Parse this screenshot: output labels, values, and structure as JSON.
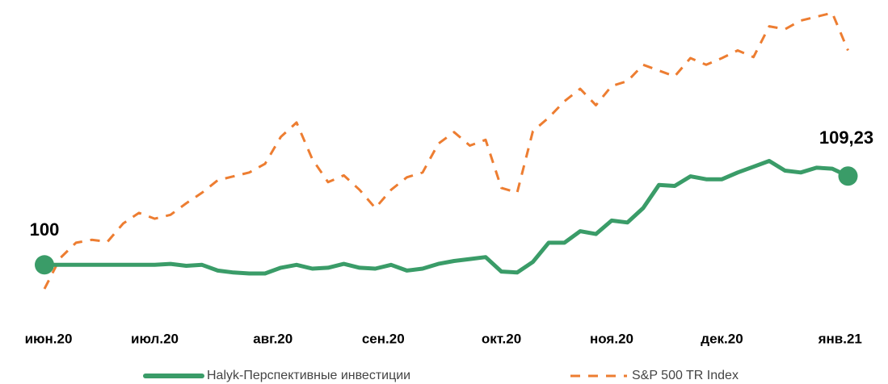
{
  "chart_data": {
    "type": "line",
    "xlim": [
      0,
      51
    ],
    "xticks": [
      {
        "value": 0,
        "label": "июн.20"
      },
      {
        "value": 7,
        "label": "июл.20"
      },
      {
        "value": 14.5,
        "label": "авг.20"
      },
      {
        "value": 21.5,
        "label": "сен.20"
      },
      {
        "value": 29,
        "label": "окт.20"
      },
      {
        "value": 36,
        "label": "ноя.20"
      },
      {
        "value": 43,
        "label": "дек.20"
      },
      {
        "value": 50.5,
        "label": "янв.21"
      }
    ],
    "ylim": [
      96.5,
      126.7
    ],
    "grid": false,
    "series": [
      {
        "name": "Halyk-Перспективные инвестиции",
        "color": "#3a9c68",
        "values": [
          100,
          100,
          100,
          100,
          100,
          100,
          100,
          100,
          100.1,
          99.9,
          100,
          99.4,
          99.2,
          99.1,
          99.1,
          99.7,
          100,
          99.6,
          99.7,
          100.1,
          99.7,
          99.6,
          100,
          99.4,
          99.6,
          100.1,
          100.4,
          100.6,
          100.8,
          99.3,
          99.2,
          100.3,
          102.3,
          102.3,
          103.5,
          103.2,
          104.6,
          104.4,
          105.9,
          108.3,
          108.2,
          109.2,
          108.9,
          108.9,
          109.6,
          110.2,
          110.8,
          109.8,
          109.6,
          110.1,
          110,
          109.23
        ],
        "value_labels": [
          "100",
          null,
          null,
          null,
          null,
          null,
          null,
          null,
          null,
          null,
          null,
          null,
          null,
          null,
          null,
          null,
          null,
          null,
          null,
          null,
          null,
          null,
          null,
          null,
          null,
          null,
          null,
          null,
          null,
          null,
          null,
          null,
          null,
          null,
          null,
          null,
          null,
          null,
          null,
          null,
          null,
          null,
          null,
          null,
          null,
          null,
          null,
          null,
          null,
          null,
          null,
          "109,23"
        ]
      },
      {
        "name": "S&P 500 TR Index",
        "color": "#ed7d31",
        "values": [
          97.5,
          100.7,
          102.3,
          102.6,
          102.4,
          104.3,
          105.4,
          104.8,
          105.2,
          106.4,
          107.5,
          108.8,
          109.2,
          109.6,
          110.5,
          113.3,
          114.8,
          111,
          108.6,
          109.3,
          107.8,
          105.9,
          107.8,
          109.1,
          109.6,
          112.6,
          113.8,
          112.4,
          113,
          108,
          107.5,
          113.9,
          115.3,
          117,
          118.3,
          116.6,
          118.6,
          119.1,
          120.8,
          120.2,
          119.6,
          121.5,
          120.8,
          121.5,
          122.3,
          121.6,
          124.8,
          124.5,
          125.4,
          125.8,
          126.2,
          122.3
        ]
      }
    ]
  }
}
